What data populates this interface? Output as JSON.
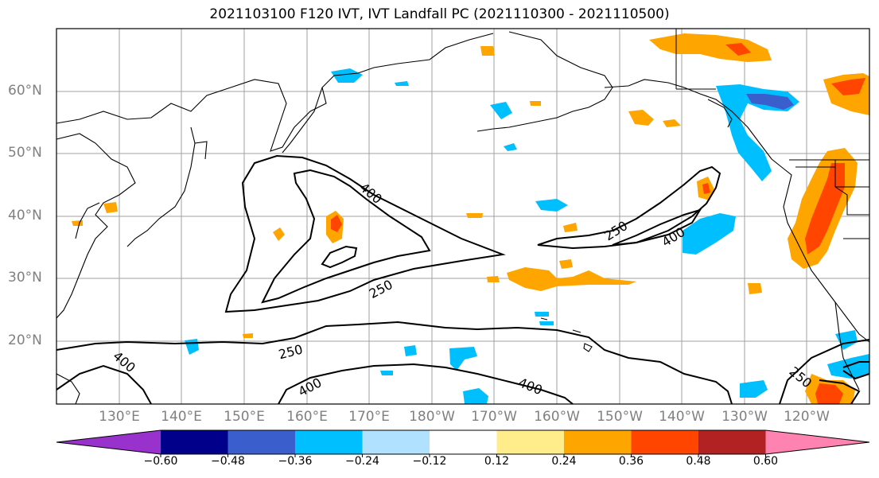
{
  "title": "2021103100 F120 IVT, IVT Landfall PC (2021110300 - 2021110500)",
  "lat_labels": [
    "60°N",
    "50°N",
    "40°N",
    "30°N",
    "20°N"
  ],
  "lon_labels": [
    "130°E",
    "140°E",
    "150°E",
    "160°E",
    "170°E",
    "180°W",
    "170°W",
    "160°W",
    "150°W",
    "140°W",
    "130°W",
    "120°W"
  ],
  "contour_labels": [
    "400",
    "250",
    "400",
    "250",
    "250",
    "400",
    "400",
    "250",
    "400"
  ],
  "colorbar": {
    "tick_labels": [
      "−0.60",
      "−0.48",
      "−0.36",
      "−0.24",
      "−0.12",
      "0.12",
      "0.24",
      "0.36",
      "0.48",
      "0.60"
    ],
    "colors": [
      "#9932cc",
      "#00008b",
      "#3a5fcd",
      "#00bfff",
      "#b0e2ff",
      "#ffffff",
      "#ffec8b",
      "#ffa500",
      "#ff4500",
      "#b22222",
      "#ff83b0"
    ]
  }
}
